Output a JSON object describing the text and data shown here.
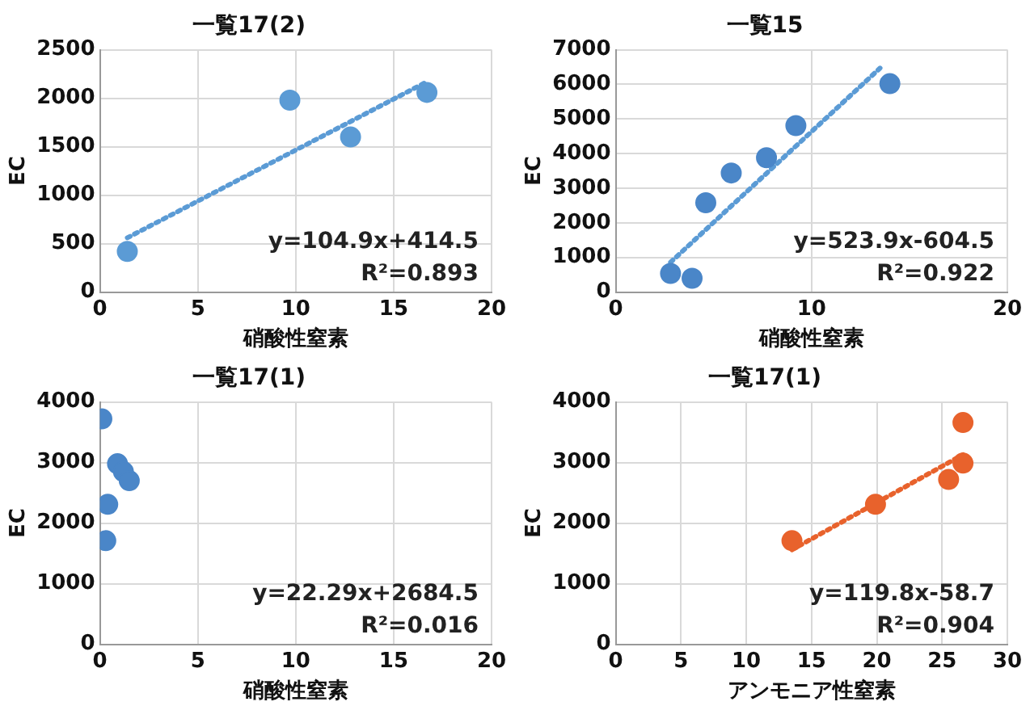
{
  "chart_data": [
    {
      "type": "scatter",
      "title": "一覧17(2)",
      "xlabel": "硝酸性窒素",
      "ylabel": "EC",
      "xlim": [
        0,
        20
      ],
      "xticks": [
        0,
        5,
        10,
        15,
        20
      ],
      "ylim": [
        0,
        2500
      ],
      "yticks": [
        0,
        500,
        1000,
        1500,
        2000,
        2500
      ],
      "grid": true,
      "legend": false,
      "marker": "circle",
      "annotations": [
        "y=104.9x+414.5",
        "R²=0.893"
      ],
      "series": [
        {
          "color": "#5b9bd5",
          "x": [
            1.4,
            9.7,
            12.8,
            16.7
          ],
          "values": [
            420,
            1980,
            1600,
            2060
          ]
        },
        {
          "type": "line",
          "color": "#5b9bd5",
          "marker": "none",
          "line_style": "dotted",
          "x": [
            1.4,
            16.7
          ],
          "values": [
            560,
            2170
          ]
        }
      ]
    },
    {
      "type": "scatter",
      "title": "一覧15",
      "xlabel": "硝酸性窒素",
      "ylabel": "EC",
      "xlim": [
        0,
        20
      ],
      "xticks": [
        0,
        10,
        20
      ],
      "ylim": [
        0,
        7000
      ],
      "yticks": [
        0,
        1000,
        2000,
        3000,
        4000,
        5000,
        6000,
        7000
      ],
      "grid": true,
      "legend": false,
      "marker": "circle",
      "annotations": [
        "y=523.9x-604.5",
        "R²=0.922"
      ],
      "series": [
        {
          "color": "#4a86c8",
          "x": [
            2.8,
            3.9,
            4.6,
            5.9,
            7.7,
            9.2,
            14.0
          ],
          "values": [
            540,
            400,
            2580,
            3440,
            3880,
            4810,
            6020
          ]
        },
        {
          "type": "line",
          "color": "#5b9bd5",
          "marker": "none",
          "line_style": "dotted",
          "x": [
            2.8,
            13.5
          ],
          "values": [
            860,
            6470
          ]
        }
      ]
    },
    {
      "type": "scatter",
      "title": "一覧17(1)",
      "xlabel": "硝酸性窒素",
      "ylabel": "EC",
      "xlim": [
        0,
        20
      ],
      "xticks": [
        0,
        5,
        10,
        15,
        20
      ],
      "ylim": [
        0,
        4000
      ],
      "yticks": [
        0,
        1000,
        2000,
        3000,
        4000
      ],
      "grid": true,
      "legend": false,
      "marker": "circle",
      "annotations": [
        "y=22.29x+2684.5",
        "R²=0.016"
      ],
      "series": [
        {
          "color": "#4a86c8",
          "x": [
            0.1,
            0.9,
            1.2,
            1.5,
            0.4,
            0.3
          ],
          "values": [
            3720,
            2980,
            2850,
            2700,
            2310,
            1710
          ]
        }
      ]
    },
    {
      "type": "scatter",
      "title": "一覧17(1)",
      "xlabel": "アンモニア性窒素",
      "ylabel": "EC",
      "xlim": [
        0,
        30
      ],
      "xticks": [
        0,
        5,
        10,
        15,
        20,
        25,
        30
      ],
      "ylim": [
        0,
        4000
      ],
      "yticks": [
        0,
        1000,
        2000,
        3000,
        4000
      ],
      "grid": true,
      "legend": false,
      "marker": "circle",
      "annotations": [
        "y=119.8x-58.7",
        "R²=0.904"
      ],
      "series": [
        {
          "color": "#e8622c",
          "x": [
            13.5,
            19.9,
            25.5,
            26.6,
            26.6
          ],
          "values": [
            1710,
            2310,
            2720,
            2990,
            3660
          ]
        },
        {
          "type": "line",
          "color": "#e8622c",
          "marker": "none",
          "line_style": "dotted",
          "x": [
            13.5,
            26.6
          ],
          "values": [
            1560,
            3130
          ]
        }
      ]
    }
  ]
}
